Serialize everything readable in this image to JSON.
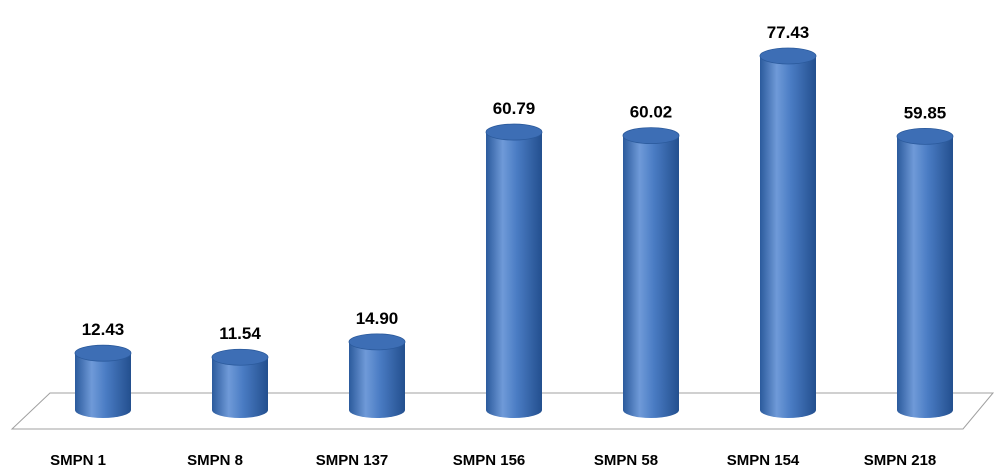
{
  "chart_data": {
    "type": "bar",
    "style": "3d-cylinder",
    "categories": [
      "SMPN 1",
      "SMPN 8",
      "SMPN 137",
      "SMPN 156",
      "SMPN 58",
      "SMPN 154",
      "SMPN 218"
    ],
    "values": [
      12.43,
      11.54,
      14.9,
      60.79,
      60.02,
      77.43,
      59.85
    ],
    "value_labels": [
      "12.43",
      "11.54",
      "14.90",
      "60.79",
      "60.02",
      "77.43",
      "59.85"
    ],
    "ylim": [
      0,
      80
    ],
    "grid": false,
    "legend": "none",
    "colors": {
      "bar_light": "#6f9ad8",
      "bar_mid": "#4a7cc4",
      "bar_dark": "#2b5a9c",
      "bar_top": "#3d6eb5",
      "floor_line": "#a0a0a0"
    }
  }
}
